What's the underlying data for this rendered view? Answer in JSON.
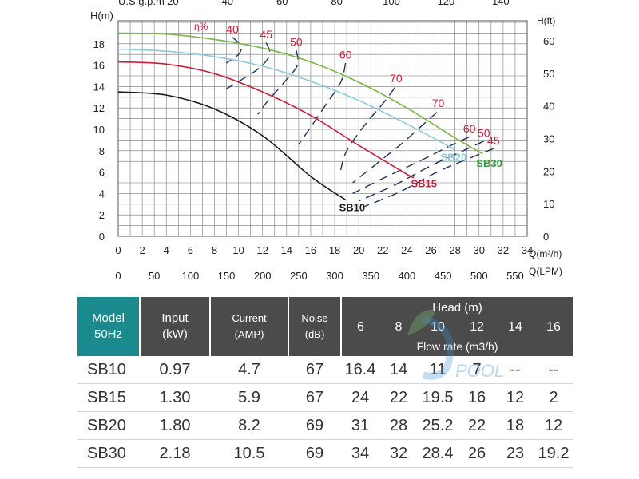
{
  "chart_data": {
    "type": "line",
    "ylabel_left": "H(m)",
    "ylabel_right": "H(ft)",
    "xlabel_top": "U.S.g.p.m",
    "xlabel_q": "Q(m³/h)",
    "xlabel_lpm": "Q(LPM)",
    "efficiency_symbol": "η%",
    "xlim": [
      0,
      34
    ],
    "ylim": [
      0,
      19
    ],
    "x_ticks": [
      "0",
      "2",
      "4",
      "6",
      "8",
      "10",
      "12",
      "14",
      "16",
      "18",
      "20",
      "22",
      "24",
      "26",
      "28",
      "30",
      "32",
      "34"
    ],
    "y_ticks": [
      "0",
      "2",
      "4",
      "6",
      "8",
      "10",
      "12",
      "14",
      "16",
      "18"
    ],
    "ft_ticks": [
      "0",
      "10",
      "20",
      "30",
      "40",
      "50",
      "60"
    ],
    "lpm_ticks": [
      "0",
      "50",
      "100",
      "150",
      "200",
      "250",
      "300",
      "350",
      "400",
      "450",
      "500",
      "550"
    ],
    "gpm_ticks": [
      "20",
      "40",
      "60",
      "80",
      "100",
      "120",
      "140"
    ],
    "series": [
      {
        "name": "SB10",
        "color": "#1a1a1a",
        "x": [
          0,
          4,
          8,
          12,
          16,
          18.9
        ],
        "y": [
          13.5,
          13.2,
          11.9,
          9.4,
          5.6,
          3.4
        ]
      },
      {
        "name": "SB15",
        "color": "#c8203a",
        "x": [
          0,
          4,
          8,
          12,
          16,
          20,
          24,
          24.6
        ],
        "y": [
          16.3,
          16.1,
          15.2,
          13.5,
          11.3,
          8.5,
          5.8,
          5.5
        ]
      },
      {
        "name": "SB20",
        "color": "#8ec8dc",
        "x": [
          0,
          4,
          8,
          12,
          16,
          20,
          24,
          28
        ],
        "y": [
          17.5,
          17.3,
          16.8,
          15.9,
          14.5,
          12.7,
          10.5,
          8.1
        ]
      },
      {
        "name": "SB30",
        "color": "#7cb548",
        "x": [
          0,
          4,
          8,
          12,
          16,
          20,
          24,
          28,
          30.3
        ],
        "y": [
          19.0,
          18.9,
          18.4,
          17.6,
          16.3,
          14.4,
          12.0,
          9.2,
          7.7
        ]
      }
    ],
    "efficiency_labels": [
      {
        "label": "40",
        "x": 9.5,
        "y": 19.0
      },
      {
        "label": "45",
        "x": 12.3,
        "y": 18.5
      },
      {
        "label": "50",
        "x": 14.8,
        "y": 17.8
      },
      {
        "label": "60",
        "x": 18.9,
        "y": 16.6
      },
      {
        "label": "70",
        "x": 23.1,
        "y": 14.4
      },
      {
        "label": "70",
        "x": 26.6,
        "y": 12.1
      },
      {
        "label": "60",
        "x": 29.2,
        "y": 9.7
      },
      {
        "label": "50",
        "x": 30.4,
        "y": 9.3
      },
      {
        "label": "45",
        "x": 31.2,
        "y": 8.6
      }
    ]
  },
  "table": {
    "model_label_1": "Model",
    "model_label_2": "50Hz",
    "input_label_1": "Input",
    "input_label_2": "(kW)",
    "current_label_1": "Current",
    "current_label_2": "(AMP)",
    "noise_label_1": "Noise",
    "noise_label_2": "(dB)",
    "head_label": "Head (m)",
    "flow_label": "Flow rate (m3/h)",
    "heads": [
      "6",
      "8",
      "10",
      "12",
      "14",
      "16"
    ],
    "rows": [
      {
        "model": "SB10",
        "input": "0.97",
        "current": "4.7",
        "noise": "67",
        "flows": [
          "16.4",
          "14",
          "11",
          "7",
          "--",
          "--"
        ]
      },
      {
        "model": "SB15",
        "input": "1.30",
        "current": "5.9",
        "noise": "67",
        "flows": [
          "24",
          "22",
          "19.5",
          "16",
          "12",
          "2"
        ]
      },
      {
        "model": "SB20",
        "input": "1.80",
        "current": "8.2",
        "noise": "69",
        "flows": [
          "31",
          "28",
          "25.2",
          "22",
          "18",
          "12"
        ]
      },
      {
        "model": "SB30",
        "input": "2.18",
        "current": "10.5",
        "noise": "69",
        "flows": [
          "34",
          "32",
          "28.4",
          "26",
          "23",
          "19.2"
        ]
      }
    ]
  },
  "watermark": "POOL",
  "colors": {
    "header_dark": "#4b4b4b",
    "header_teal": "#1a8a8f",
    "efficiency": "#c8203a",
    "iso_lines": "#22335a"
  }
}
